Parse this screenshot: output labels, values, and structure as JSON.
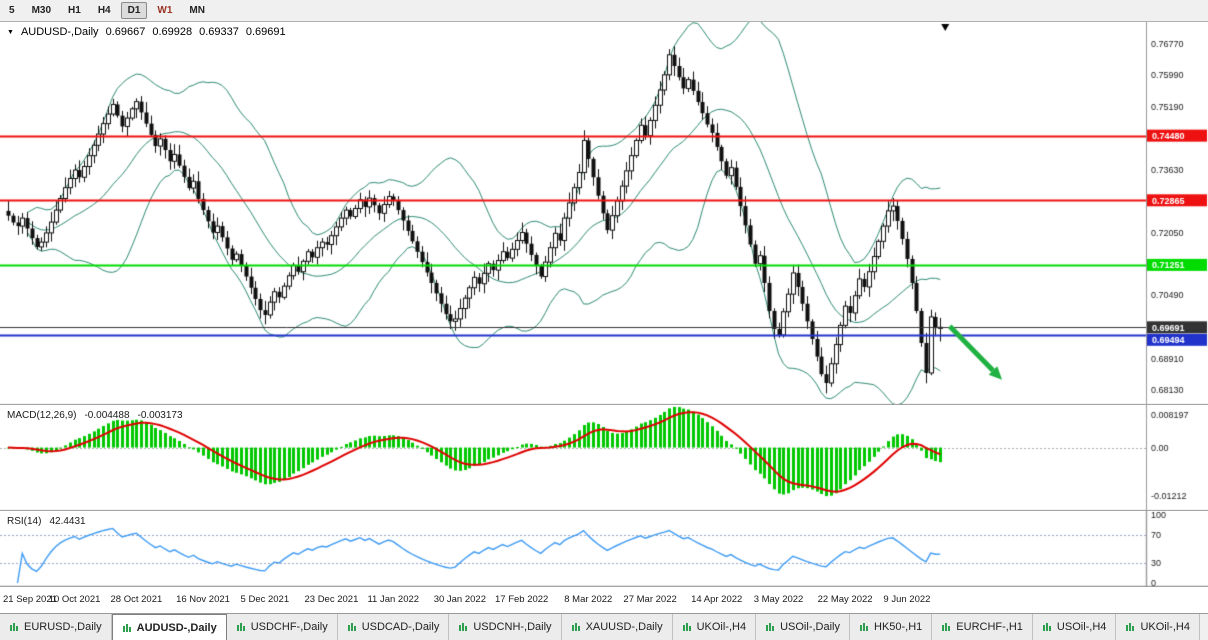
{
  "toolbar": {
    "timeframes": [
      {
        "label": "5",
        "active": false
      },
      {
        "label": "M30",
        "active": false
      },
      {
        "label": "H1",
        "active": false
      },
      {
        "label": "H4",
        "active": false
      },
      {
        "label": "D1",
        "active": true
      },
      {
        "label": "W1",
        "active": false,
        "color": "#993322"
      },
      {
        "label": "MN",
        "active": false
      }
    ]
  },
  "chart_header": {
    "collapse_icon": "▼",
    "symbol": "AUDUSD-,Daily",
    "open": "0.69667",
    "high": "0.69928",
    "low": "0.69337",
    "close": "0.69691"
  },
  "chart_data": {
    "type": "candlestick",
    "symbol": "AUDUSD",
    "timeframe": "Daily",
    "last_ohlc": {
      "open": 0.69667,
      "high": 0.69928,
      "low": 0.69337,
      "close": 0.69691
    },
    "x_labels": [
      "21 Sep 2021",
      "10 Oct 2021",
      "28 Oct 2021",
      "16 Nov 2021",
      "5 Dec 2021",
      "23 Dec 2021",
      "11 Jan 2022",
      "30 Jan 2022",
      "17 Feb 2022",
      "8 Mar 2022",
      "27 Mar 2022",
      "14 Apr 2022",
      "3 May 2022",
      "22 May 2022",
      "9 Jun 2022"
    ],
    "closes": [
      0.7248,
      0.7231,
      0.7222,
      0.7242,
      0.7216,
      0.7192,
      0.717,
      0.7182,
      0.7205,
      0.7232,
      0.7262,
      0.7291,
      0.7318,
      0.7341,
      0.7362,
      0.7344,
      0.7371,
      0.7398,
      0.7424,
      0.7452,
      0.7478,
      0.7502,
      0.7526,
      0.7498,
      0.7471,
      0.7492,
      0.7515,
      0.7533,
      0.7506,
      0.7478,
      0.745,
      0.7422,
      0.744,
      0.7412,
      0.7384,
      0.7401,
      0.7373,
      0.7345,
      0.7317,
      0.7334,
      0.729,
      0.7262,
      0.7234,
      0.7206,
      0.7222,
      0.7194,
      0.7166,
      0.7138,
      0.7152,
      0.7124,
      0.7096,
      0.7068,
      0.704,
      0.7012,
      0.7,
      0.7032,
      0.7058,
      0.7044,
      0.7072,
      0.7098,
      0.7124,
      0.7108,
      0.7134,
      0.7158,
      0.7144,
      0.7168,
      0.7182,
      0.7176,
      0.7198,
      0.722,
      0.7242,
      0.7262,
      0.7246,
      0.7266,
      0.7288,
      0.727,
      0.7292,
      0.7274,
      0.7254,
      0.7276,
      0.7296,
      0.7286,
      0.7262,
      0.7236,
      0.721,
      0.7184,
      0.7158,
      0.7132,
      0.7106,
      0.708,
      0.7054,
      0.7028,
      0.7002,
      0.6984,
      0.699,
      0.7016,
      0.7042,
      0.7068,
      0.7094,
      0.7078,
      0.7104,
      0.7128,
      0.7112,
      0.7136,
      0.7158,
      0.7142,
      0.7164,
      0.7186,
      0.7206,
      0.7178,
      0.715,
      0.7122,
      0.7096,
      0.7132,
      0.7168,
      0.7204,
      0.7186,
      0.7242,
      0.728,
      0.7318,
      0.7356,
      0.7436,
      0.739,
      0.7344,
      0.7298,
      0.7254,
      0.7212,
      0.7248,
      0.7285,
      0.7322,
      0.736,
      0.7398,
      0.7436,
      0.7474,
      0.7448,
      0.7486,
      0.7524,
      0.7562,
      0.76,
      0.765,
      0.7622,
      0.7594,
      0.7566,
      0.7588,
      0.756,
      0.7532,
      0.7504,
      0.7476,
      0.7455,
      0.742,
      0.7384,
      0.7348,
      0.7368,
      0.732,
      0.7272,
      0.7224,
      0.7176,
      0.7128,
      0.7148,
      0.708,
      0.701,
      0.6965,
      0.695,
      0.7008,
      0.7052,
      0.7105,
      0.707,
      0.7028,
      0.6984,
      0.694,
      0.6896,
      0.6852,
      0.683,
      0.6878,
      0.6926,
      0.6974,
      0.7022,
      0.7005,
      0.7048,
      0.709,
      0.707,
      0.7108,
      0.7146,
      0.7184,
      0.7222,
      0.726,
      0.7272,
      0.7235,
      0.719,
      0.714,
      0.708,
      0.701,
      0.693,
      0.6855,
      0.6995,
      0.6967,
      0.69691
    ],
    "price_axis": {
      "ymin": 0.679,
      "ymax": 0.7717,
      "ticks": [
        "0.76770",
        "0.75990",
        "0.75190",
        "0.73630",
        "0.72050",
        "0.70490",
        "0.68910",
        "0.68130"
      ]
    },
    "hlines": [
      {
        "value": 0.7448,
        "label": "0.74480",
        "color": "#EE1111",
        "width": 2
      },
      {
        "value": 0.72865,
        "label": "0.72865",
        "color": "#EE1111",
        "width": 2
      },
      {
        "value": 0.71251,
        "label": "0.71251",
        "color": "#00DC00",
        "width": 2
      },
      {
        "value": 0.69691,
        "label": "0.69691",
        "color": "#333333",
        "width": 1
      },
      {
        "value": 0.69494,
        "label": "0.69494",
        "color": "#2233CC",
        "width": 2
      }
    ],
    "bollinger": {
      "period": 20,
      "deviation": 2.0,
      "color": "#2E8B74"
    },
    "candle": {
      "up_fill": "#FFFFFF",
      "down_fill": "#101010",
      "border": "#101010"
    },
    "arrow": {
      "from_bar": 198,
      "from_price": 0.6972,
      "to_bar": 209,
      "to_price": 0.6838,
      "color": "#1FB141"
    },
    "macd": {
      "name": "MACD(12,26,9)",
      "value": "-0.004488",
      "signal_value": "-0.003173",
      "fast": 12,
      "slow": 26,
      "signal": 9,
      "ylim": [
        -0.0138,
        0.0096
      ],
      "ticks": [
        "0.008197",
        "0.00",
        "-0.01212"
      ],
      "tick_values": [
        0.008197,
        0,
        -0.01212
      ],
      "hist_color": "#00C800",
      "signal_color": "#E00000"
    },
    "rsi": {
      "name": "RSI(14)",
      "value": "42.4431",
      "period": 14,
      "ylim": [
        0,
        100
      ],
      "ticks": [
        "100",
        "70",
        "30",
        "0"
      ],
      "tick_values": [
        100,
        70,
        30,
        0
      ],
      "levels": [
        70,
        30
      ],
      "line_color": "#3E9BF4",
      "level_color": "#9AA7C7"
    }
  },
  "tabs": {
    "items": [
      {
        "label": "EURUSD-,Daily",
        "active": false
      },
      {
        "label": "AUDUSD-,Daily",
        "active": true
      },
      {
        "label": "USDCHF-,Daily",
        "active": false
      },
      {
        "label": "USDCAD-,Daily",
        "active": false
      },
      {
        "label": "USDCNH-,Daily",
        "active": false
      },
      {
        "label": "XAUUSD-,Daily",
        "active": false
      },
      {
        "label": "UKOil-,H4",
        "active": false
      },
      {
        "label": "USOil-,Daily",
        "active": false
      },
      {
        "label": "HK50-,H1",
        "active": false
      },
      {
        "label": "EURCHF-,H1",
        "active": false
      },
      {
        "label": "USOil-,H4",
        "active": false
      },
      {
        "label": "UKOil-,H4",
        "active": false
      }
    ]
  }
}
